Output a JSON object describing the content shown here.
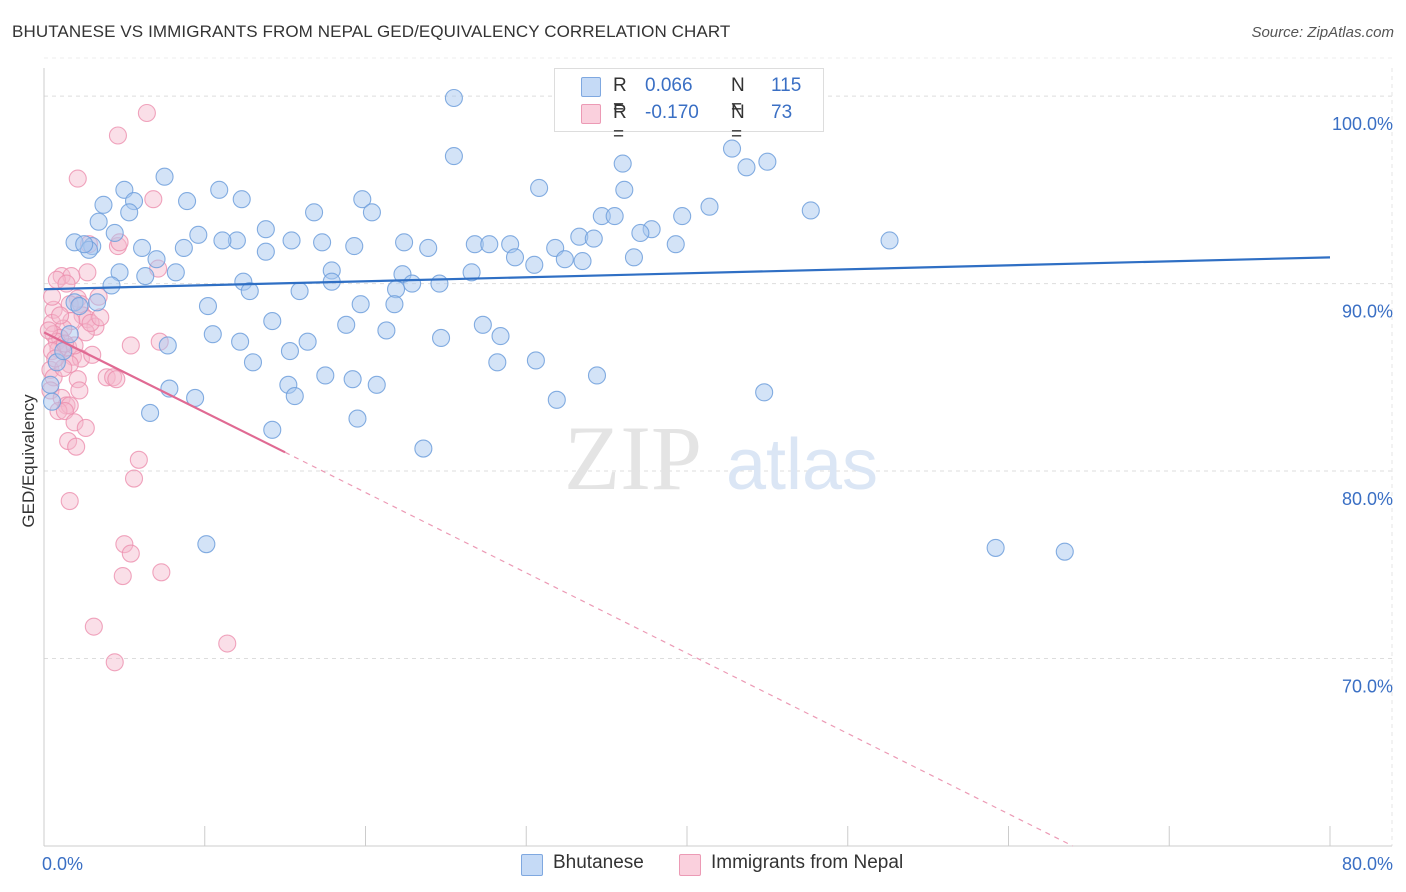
{
  "header": {
    "title": "BHUTANESE VS IMMIGRANTS FROM NEPAL GED/EQUIVALENCY CORRELATION CHART",
    "source": "Source: ZipAtlas.com"
  },
  "watermark": {
    "part1": "ZIP",
    "part2": "atlas"
  },
  "legend": {
    "rows": [
      {
        "r_label": "R =",
        "r_value": "0.066",
        "n_label": "N =",
        "n_value": "115",
        "color": "#a8c8f0"
      },
      {
        "r_label": "R =",
        "r_value": "-0.170",
        "n_label": "N =",
        "n_value": "73",
        "color": "#f5b8cb"
      }
    ]
  },
  "bottom_legend": [
    {
      "label": "Bhutanese",
      "color": "#a8c8f0"
    },
    {
      "label": "Immigrants from Nepal",
      "color": "#f5b8cb"
    }
  ],
  "chart_data": {
    "type": "scatter",
    "title": "BHUTANESE VS IMMIGRANTS FROM NEPAL GED/EQUIVALENCY CORRELATION CHART",
    "ylabel": "GED/Equivalency",
    "xlabel": "",
    "x_tick_labels": [
      "0.0%",
      "80.0%"
    ],
    "y_tick_labels": [
      "100.0%",
      "90.0%",
      "80.0%",
      "70.0%"
    ],
    "y_ticks": [
      100,
      90,
      80,
      70
    ],
    "xlim": [
      0,
      80
    ],
    "ylim": [
      60,
      101.5
    ],
    "grid": true,
    "legend_position": "top-center",
    "colors": {
      "blue_fill": "#a8c8f0",
      "blue_line": "#2f6fc4",
      "pink_fill": "#f5b8cb",
      "pink_line": "#e06a93"
    },
    "series": [
      {
        "name": "Bhutanese",
        "trend": {
          "x": [
            0,
            80
          ],
          "y": [
            89.7,
            91.4
          ]
        },
        "points": [
          [
            25.5,
            99.9
          ],
          [
            43.0,
            100.0
          ],
          [
            25.5,
            96.8
          ],
          [
            36.0,
            96.4
          ],
          [
            42.8,
            97.2
          ],
          [
            43.7,
            96.2
          ],
          [
            45.0,
            96.5
          ],
          [
            7.5,
            95.7
          ],
          [
            5.0,
            95.0
          ],
          [
            10.9,
            95.0
          ],
          [
            30.8,
            95.1
          ],
          [
            36.1,
            95.0
          ],
          [
            41.4,
            94.1
          ],
          [
            47.7,
            93.9
          ],
          [
            3.7,
            94.2
          ],
          [
            5.6,
            94.4
          ],
          [
            8.9,
            94.4
          ],
          [
            12.3,
            94.5
          ],
          [
            19.8,
            94.5
          ],
          [
            5.3,
            93.8
          ],
          [
            16.8,
            93.8
          ],
          [
            20.4,
            93.8
          ],
          [
            34.7,
            93.6
          ],
          [
            35.5,
            93.6
          ],
          [
            39.7,
            93.6
          ],
          [
            3.4,
            93.3
          ],
          [
            4.4,
            92.7
          ],
          [
            9.6,
            92.6
          ],
          [
            13.8,
            92.9
          ],
          [
            37.8,
            92.9
          ],
          [
            37.1,
            92.7
          ],
          [
            33.3,
            92.5
          ],
          [
            34.2,
            92.4
          ],
          [
            26.8,
            92.1
          ],
          [
            29.0,
            92.1
          ],
          [
            12.0,
            92.3
          ],
          [
            11.1,
            92.3
          ],
          [
            15.4,
            92.3
          ],
          [
            17.3,
            92.2
          ],
          [
            19.3,
            92.0
          ],
          [
            22.4,
            92.2
          ],
          [
            23.9,
            91.9
          ],
          [
            27.7,
            92.1
          ],
          [
            31.8,
            91.9
          ],
          [
            39.3,
            92.1
          ],
          [
            32.4,
            91.3
          ],
          [
            33.5,
            91.2
          ],
          [
            3.0,
            92.0
          ],
          [
            6.1,
            91.9
          ],
          [
            8.7,
            91.9
          ],
          [
            13.8,
            91.7
          ],
          [
            29.3,
            91.4
          ],
          [
            30.5,
            91.0
          ],
          [
            36.7,
            91.4
          ],
          [
            52.6,
            92.3
          ],
          [
            2.8,
            91.8
          ],
          [
            1.9,
            92.2
          ],
          [
            2.5,
            92.1
          ],
          [
            7.0,
            91.3
          ],
          [
            4.7,
            90.6
          ],
          [
            6.3,
            90.4
          ],
          [
            8.2,
            90.6
          ],
          [
            17.9,
            90.7
          ],
          [
            22.3,
            90.5
          ],
          [
            26.6,
            90.6
          ],
          [
            12.4,
            90.1
          ],
          [
            17.9,
            90.1
          ],
          [
            22.9,
            90.0
          ],
          [
            24.6,
            90.0
          ],
          [
            15.9,
            89.6
          ],
          [
            21.9,
            89.7
          ],
          [
            3.3,
            89.0
          ],
          [
            4.2,
            89.9
          ],
          [
            12.8,
            89.6
          ],
          [
            1.9,
            89.0
          ],
          [
            2.2,
            88.8
          ],
          [
            10.2,
            88.8
          ],
          [
            19.7,
            88.9
          ],
          [
            21.8,
            88.9
          ],
          [
            14.2,
            88.0
          ],
          [
            18.8,
            87.8
          ],
          [
            21.3,
            87.5
          ],
          [
            27.3,
            87.8
          ],
          [
            10.5,
            87.3
          ],
          [
            12.2,
            86.9
          ],
          [
            16.4,
            86.9
          ],
          [
            24.7,
            87.1
          ],
          [
            28.4,
            87.2
          ],
          [
            7.7,
            86.7
          ],
          [
            15.3,
            86.4
          ],
          [
            13.0,
            85.8
          ],
          [
            28.2,
            85.8
          ],
          [
            30.6,
            85.9
          ],
          [
            17.5,
            85.1
          ],
          [
            19.2,
            84.9
          ],
          [
            34.4,
            85.1
          ],
          [
            15.2,
            84.6
          ],
          [
            20.7,
            84.6
          ],
          [
            7.8,
            84.4
          ],
          [
            9.4,
            83.9
          ],
          [
            15.6,
            84.0
          ],
          [
            31.9,
            83.8
          ],
          [
            44.8,
            84.2
          ],
          [
            6.6,
            83.1
          ],
          [
            19.5,
            82.8
          ],
          [
            14.2,
            82.2
          ],
          [
            23.6,
            81.2
          ],
          [
            10.1,
            76.1
          ],
          [
            59.2,
            75.9
          ],
          [
            63.5,
            75.7
          ],
          [
            0.4,
            84.6
          ],
          [
            0.8,
            85.8
          ],
          [
            1.2,
            86.4
          ],
          [
            1.6,
            87.3
          ],
          [
            0.5,
            83.7
          ]
        ]
      },
      {
        "name": "Immigrants from Nepal",
        "trend": {
          "x": [
            0,
            15.0
          ],
          "y": [
            87.4,
            81.0
          ],
          "dashed_x": [
            15.0,
            64.0
          ],
          "dashed_y": [
            81.0,
            60.0
          ]
        },
        "points": [
          [
            6.4,
            99.1
          ],
          [
            4.6,
            97.9
          ],
          [
            2.1,
            95.6
          ],
          [
            6.8,
            94.5
          ],
          [
            2.8,
            92.1
          ],
          [
            4.6,
            92.0
          ],
          [
            4.7,
            92.2
          ],
          [
            7.1,
            90.8
          ],
          [
            2.7,
            90.6
          ],
          [
            1.1,
            90.4
          ],
          [
            1.7,
            90.4
          ],
          [
            0.8,
            90.2
          ],
          [
            1.4,
            90.0
          ],
          [
            2.1,
            89.2
          ],
          [
            3.4,
            89.3
          ],
          [
            1.6,
            88.9
          ],
          [
            2.3,
            88.9
          ],
          [
            0.6,
            88.6
          ],
          [
            2.4,
            88.3
          ],
          [
            2.7,
            88.1
          ],
          [
            1.7,
            88.0
          ],
          [
            0.5,
            87.9
          ],
          [
            1.2,
            87.6
          ],
          [
            3.2,
            87.7
          ],
          [
            2.6,
            87.4
          ],
          [
            0.6,
            87.3
          ],
          [
            1.0,
            87.1
          ],
          [
            7.2,
            86.9
          ],
          [
            0.8,
            86.9
          ],
          [
            1.5,
            86.6
          ],
          [
            5.4,
            86.7
          ],
          [
            0.9,
            86.5
          ],
          [
            0.5,
            86.4
          ],
          [
            1.8,
            86.1
          ],
          [
            2.3,
            86.0
          ],
          [
            1.6,
            85.7
          ],
          [
            0.4,
            85.4
          ],
          [
            0.6,
            85.0
          ],
          [
            3.9,
            85.0
          ],
          [
            4.3,
            85.0
          ],
          [
            4.5,
            84.9
          ],
          [
            2.1,
            84.9
          ],
          [
            0.4,
            84.3
          ],
          [
            1.1,
            83.9
          ],
          [
            1.4,
            83.5
          ],
          [
            1.6,
            83.5
          ],
          [
            0.9,
            83.2
          ],
          [
            1.3,
            83.2
          ],
          [
            1.9,
            82.6
          ],
          [
            2.6,
            82.3
          ],
          [
            1.5,
            81.6
          ],
          [
            2.0,
            81.3
          ],
          [
            5.9,
            80.6
          ],
          [
            5.6,
            79.6
          ],
          [
            1.6,
            78.4
          ],
          [
            5.0,
            76.1
          ],
          [
            5.4,
            75.6
          ],
          [
            7.3,
            74.6
          ],
          [
            4.9,
            74.4
          ],
          [
            3.1,
            71.7
          ],
          [
            11.4,
            70.8
          ],
          [
            4.4,
            69.8
          ],
          [
            1.2,
            85.5
          ],
          [
            0.7,
            86.0
          ],
          [
            1.9,
            86.7
          ],
          [
            2.9,
            87.9
          ],
          [
            3.5,
            88.2
          ],
          [
            0.3,
            87.5
          ],
          [
            1.0,
            88.3
          ],
          [
            2.2,
            84.3
          ],
          [
            3.0,
            86.2
          ],
          [
            0.5,
            89.3
          ],
          [
            1.3,
            86.8
          ]
        ]
      }
    ]
  }
}
